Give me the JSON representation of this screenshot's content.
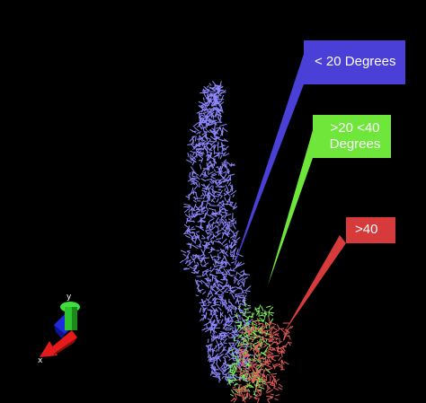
{
  "callouts": {
    "low": {
      "label": "< 20 Degrees",
      "color": "#4a3fd6"
    },
    "mid": {
      "label": ">20  <40\nDegrees",
      "color": "#6fe63a"
    },
    "high": {
      "label": ">40",
      "color": "#d63a3a"
    }
  },
  "axes": {
    "x_label": "x",
    "y_label": "y"
  },
  "molecule": {
    "regions": [
      {
        "name": "low-angle",
        "color": "#8f8aff"
      },
      {
        "name": "mid-angle",
        "color": "#7df25a"
      },
      {
        "name": "high-angle",
        "color": "#e05a5a"
      }
    ]
  },
  "colors": {
    "background": "#000000",
    "axis_x": "#e51b1b",
    "axis_y": "#2ec32e",
    "axis_z": "#1e2bdc"
  }
}
